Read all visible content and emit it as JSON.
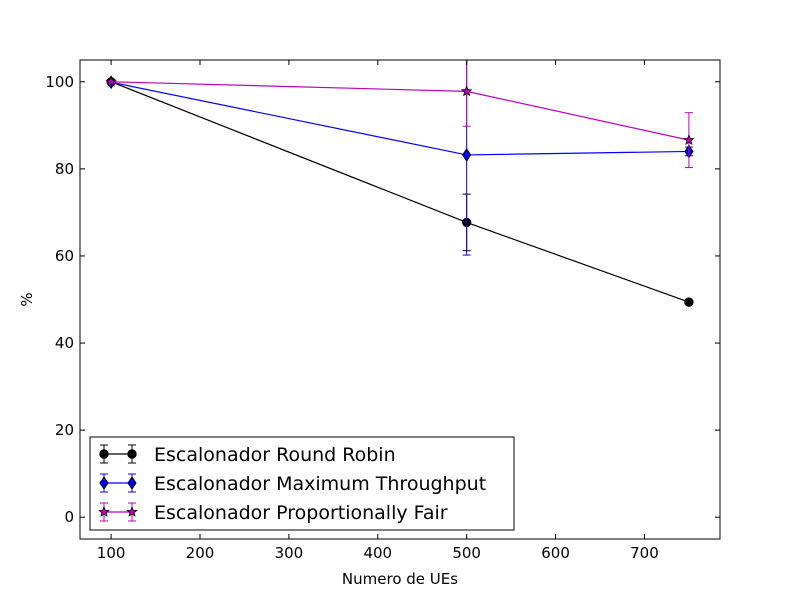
{
  "chart_data": {
    "type": "line",
    "title": "",
    "xlabel": "Numero de UEs",
    "ylabel": "%",
    "xlim": [
      65,
      785
    ],
    "ylim": [
      -5,
      105
    ],
    "x_ticks": [
      100,
      200,
      300,
      400,
      500,
      600,
      700
    ],
    "y_ticks": [
      0,
      20,
      40,
      60,
      80,
      100
    ],
    "grid": false,
    "legend_position": "lower-left",
    "x": [
      100,
      500,
      750
    ],
    "series": [
      {
        "name": "Escalonador Round Robin",
        "color": "#000000",
        "marker": "circle",
        "values": [
          100,
          67.7,
          49.4
        ],
        "err": [
          0.3,
          6.5,
          0.3
        ]
      },
      {
        "name": "Escalonador Maximum Throughput",
        "color": "#0000ff",
        "marker": "diamond",
        "values": [
          99.9,
          83.2,
          84.0
        ],
        "err": [
          0.3,
          23.0,
          1.0
        ]
      },
      {
        "name": "Escalonador Proportionally Fair",
        "color": "#bf00bf",
        "marker": "star",
        "values": [
          100,
          97.8,
          86.6
        ],
        "err": [
          0.3,
          8.0,
          6.3
        ]
      }
    ]
  }
}
